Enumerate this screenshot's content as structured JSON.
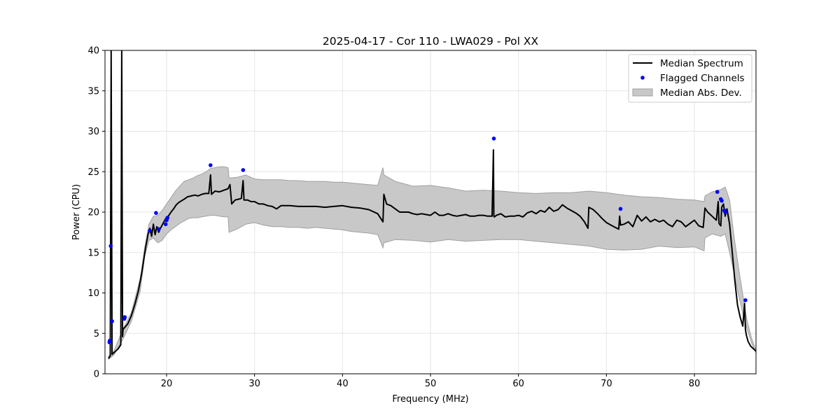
{
  "chart_data": {
    "type": "line",
    "title": "2025-04-17 - Cor 110 - LWA029 - Pol XX",
    "xlabel": "Frequency (MHz)",
    "ylabel": "Power (CPU)",
    "xlim": [
      13.0,
      87.0
    ],
    "ylim": [
      0,
      40
    ],
    "xticks": [
      20,
      30,
      40,
      50,
      60,
      70,
      80
    ],
    "yticks": [
      0,
      5,
      10,
      15,
      20,
      25,
      30,
      35,
      40
    ],
    "grid": true,
    "legend_position": "top-right",
    "colors": {
      "median": "#000000",
      "flagged": "#0000ff",
      "mad_fill": "#c8c8c8",
      "mad_edge": "#a0a0a0"
    },
    "series": [
      {
        "name": "Median Spectrum",
        "kind": "line",
        "x": [
          13.4,
          13.6,
          13.7,
          13.8,
          13.9,
          14.0,
          14.2,
          14.5,
          14.8,
          14.9,
          15.0,
          15.05,
          15.3,
          15.6,
          16.0,
          16.4,
          16.8,
          17.2,
          17.6,
          17.9,
          18.1,
          18.3,
          18.5,
          18.7,
          18.9,
          19.1,
          19.3,
          19.6,
          19.9,
          20.2,
          20.5,
          20.8,
          21.1,
          21.4,
          21.7,
          22.0,
          22.4,
          22.8,
          23.2,
          23.6,
          24.0,
          24.4,
          24.8,
          25.0,
          25.1,
          25.5,
          26.0,
          26.5,
          27.0,
          27.2,
          27.4,
          27.8,
          28.2,
          28.5,
          28.7,
          28.8,
          29.2,
          29.6,
          30.0,
          30.5,
          31.0,
          31.5,
          32.0,
          32.5,
          33.0,
          33.5,
          34.0,
          35.0,
          36.0,
          37.0,
          38.0,
          39.0,
          40.0,
          41.0,
          42.0,
          43.0,
          44.0,
          44.6,
          44.7,
          45.0,
          45.5,
          46.0,
          46.5,
          47.0,
          47.5,
          48.0,
          48.5,
          49.0,
          49.5,
          50.0,
          50.5,
          51.0,
          51.5,
          52.0,
          52.5,
          53.0,
          53.5,
          54.0,
          54.5,
          55.0,
          55.5,
          56.0,
          56.5,
          57.0,
          57.15,
          57.2,
          57.25,
          57.5,
          58.0,
          58.5,
          59.0,
          59.5,
          60.0,
          60.5,
          61.0,
          61.5,
          62.0,
          62.5,
          63.0,
          63.5,
          64.0,
          64.5,
          65.0,
          65.5,
          66.0,
          66.5,
          67.0,
          67.5,
          67.9,
          68.0,
          68.5,
          69.0,
          69.5,
          70.0,
          70.5,
          71.0,
          71.4,
          71.5,
          71.6,
          72.0,
          72.5,
          73.0,
          73.5,
          74.0,
          74.5,
          75.0,
          75.5,
          76.0,
          76.5,
          77.0,
          77.5,
          78.0,
          78.5,
          79.0,
          79.5,
          80.0,
          80.5,
          81.0,
          81.2,
          81.5,
          82.0,
          82.5,
          82.7,
          82.8,
          83.0,
          83.1,
          83.3,
          83.5,
          83.7,
          84.0,
          84.3,
          84.6,
          84.9,
          85.2,
          85.5,
          85.7,
          85.8,
          85.9,
          86.1,
          86.4,
          86.7,
          87.0
        ],
        "y": [
          1.9,
          2.2,
          40.0,
          2.4,
          2.5,
          2.6,
          2.8,
          3.1,
          3.6,
          40.0,
          4.6,
          5.5,
          5.8,
          6.2,
          7.2,
          8.6,
          10.3,
          12.6,
          15.5,
          17.3,
          18.0,
          17.0,
          18.5,
          17.2,
          18.2,
          17.5,
          18.0,
          18.6,
          19.2,
          19.5,
          20.0,
          20.4,
          20.9,
          21.2,
          21.4,
          21.6,
          21.9,
          22.0,
          22.1,
          22.0,
          22.2,
          22.3,
          22.3,
          24.6,
          22.2,
          22.6,
          22.5,
          22.7,
          22.9,
          23.4,
          21.0,
          21.5,
          21.6,
          21.7,
          23.9,
          21.5,
          21.5,
          21.3,
          21.3,
          21.0,
          21.0,
          20.8,
          20.7,
          20.4,
          20.8,
          20.8,
          20.8,
          20.7,
          20.7,
          20.7,
          20.6,
          20.7,
          20.8,
          20.6,
          20.5,
          20.3,
          19.8,
          18.8,
          22.2,
          21.0,
          20.8,
          20.4,
          20.0,
          20.0,
          20.0,
          19.8,
          19.7,
          19.8,
          19.7,
          19.6,
          20.0,
          19.6,
          19.6,
          19.8,
          19.6,
          19.5,
          19.6,
          19.7,
          19.5,
          19.5,
          19.6,
          19.6,
          19.5,
          19.5,
          27.7,
          19.5,
          19.4,
          19.6,
          19.8,
          19.4,
          19.5,
          19.5,
          19.6,
          19.4,
          19.9,
          20.1,
          19.8,
          20.2,
          20.0,
          20.6,
          20.1,
          20.3,
          20.9,
          20.5,
          20.2,
          19.9,
          19.5,
          18.8,
          18.0,
          20.6,
          20.3,
          19.8,
          19.2,
          18.7,
          18.4,
          18.1,
          17.9,
          19.5,
          18.4,
          18.5,
          18.8,
          18.2,
          19.6,
          18.9,
          19.4,
          18.8,
          19.1,
          18.8,
          19.0,
          18.5,
          18.2,
          19.0,
          18.8,
          18.2,
          18.6,
          19.0,
          18.3,
          18.1,
          20.5,
          20.0,
          19.5,
          19.0,
          21.3,
          18.6,
          18.3,
          20.6,
          21.0,
          19.5,
          20.4,
          18.5,
          15.0,
          11.5,
          8.5,
          7.0,
          5.9,
          8.7,
          5.5,
          4.8,
          4.0,
          3.4,
          3.1,
          2.8
        ]
      },
      {
        "name": "Flagged Channels",
        "kind": "scatter",
        "x": [
          13.5,
          13.55,
          13.65,
          13.8,
          15.2,
          15.25,
          18.1,
          18.8,
          19.1,
          19.9,
          20.0,
          20.1,
          25.0,
          28.7,
          57.2,
          71.6,
          82.6,
          83.0,
          83.1,
          83.4,
          83.5,
          85.8
        ],
        "y": [
          3.9,
          4.1,
          15.8,
          6.5,
          6.8,
          7.0,
          17.7,
          19.9,
          17.9,
          18.5,
          19.0,
          19.3,
          25.8,
          25.2,
          29.1,
          20.4,
          22.5,
          21.6,
          21.4,
          20.2,
          20.0,
          9.1
        ]
      },
      {
        "name": "Median Abs. Dev.",
        "kind": "band",
        "x": [
          13.4,
          14.0,
          15.0,
          16.0,
          17.0,
          17.5,
          18.0,
          18.5,
          19.0,
          19.5,
          20.0,
          20.5,
          21.0,
          21.5,
          22.0,
          22.5,
          23.0,
          23.5,
          24.0,
          24.5,
          25.0,
          25.5,
          26.0,
          26.5,
          27.0,
          27.1,
          28.0,
          29.0,
          30.0,
          31.0,
          32.0,
          33.0,
          34.0,
          35.0,
          36.0,
          37.0,
          38.0,
          39.0,
          40.0,
          41.0,
          42.0,
          43.0,
          44.0,
          44.6,
          44.7,
          46.0,
          48.0,
          50.0,
          52.0,
          54.0,
          56.0,
          58.0,
          60.0,
          62.0,
          64.0,
          66.0,
          68.0,
          70.0,
          72.0,
          74.0,
          76.0,
          78.0,
          80.0,
          81.1,
          81.2,
          82.0,
          83.0,
          83.5,
          84.0,
          84.5,
          85.0,
          85.5,
          86.0,
          86.5,
          87.0
        ],
        "lower": [
          1.8,
          2.3,
          4.2,
          6.5,
          10.2,
          14.5,
          16.5,
          16.8,
          16.2,
          16.5,
          17.3,
          17.8,
          18.2,
          18.6,
          18.9,
          19.2,
          19.3,
          19.3,
          19.4,
          19.5,
          19.6,
          19.6,
          19.5,
          19.4,
          19.4,
          17.5,
          17.9,
          18.5,
          18.7,
          18.4,
          18.2,
          18.2,
          18.1,
          18.1,
          18.0,
          18.1,
          18.0,
          17.9,
          17.8,
          17.6,
          17.5,
          17.4,
          17.2,
          15.6,
          16.2,
          16.6,
          16.5,
          16.3,
          16.6,
          16.4,
          16.5,
          16.6,
          16.6,
          16.4,
          16.2,
          16.0,
          15.8,
          15.4,
          15.3,
          15.4,
          15.8,
          15.6,
          15.7,
          15.2,
          16.8,
          17.3,
          17.0,
          17.3,
          15.0,
          12.5,
          9.8,
          7.5,
          5.5,
          3.8,
          2.6
        ],
        "upper": [
          2.2,
          2.8,
          5.4,
          7.6,
          11.8,
          15.6,
          18.5,
          19.5,
          19.6,
          20.2,
          21.0,
          21.8,
          22.6,
          23.2,
          23.8,
          24.0,
          24.2,
          24.5,
          24.7,
          25.0,
          25.4,
          25.5,
          25.6,
          25.6,
          25.5,
          24.2,
          24.3,
          24.6,
          24.1,
          24.0,
          24.0,
          24.0,
          23.9,
          23.9,
          23.8,
          23.8,
          23.8,
          23.7,
          23.7,
          23.6,
          23.5,
          23.4,
          23.3,
          25.5,
          24.6,
          23.8,
          23.2,
          23.3,
          23.0,
          22.6,
          22.7,
          22.6,
          22.4,
          22.3,
          22.4,
          22.4,
          22.6,
          22.4,
          22.1,
          21.9,
          21.8,
          21.6,
          21.5,
          21.3,
          22.0,
          22.5,
          22.8,
          23.1,
          21.5,
          17.0,
          13.2,
          9.8,
          6.5,
          4.4,
          2.9
        ]
      }
    ]
  }
}
